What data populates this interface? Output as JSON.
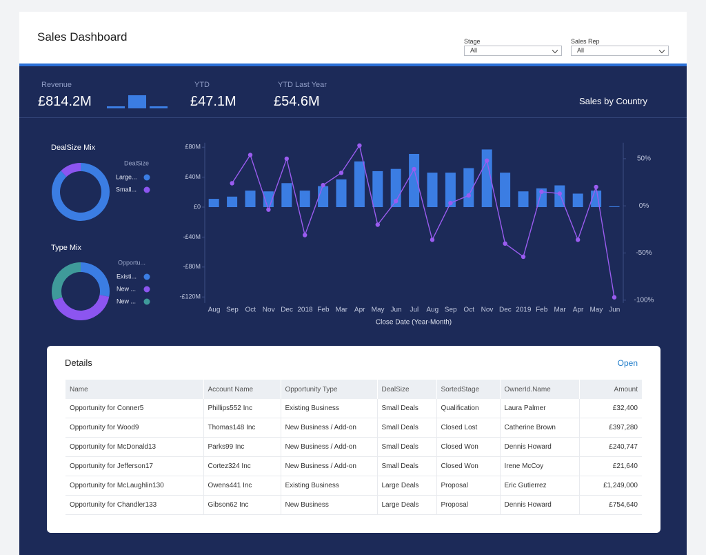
{
  "header": {
    "title": "Sales Dashboard",
    "filters": [
      {
        "label": "Stage",
        "value": "All"
      },
      {
        "label": "Sales Rep",
        "value": "All"
      }
    ]
  },
  "kpis": [
    {
      "label": "Revenue",
      "value": "£814.2M"
    },
    {
      "label": "YTD",
      "value": "£47.1M"
    },
    {
      "label": "YTD Last Year",
      "value": "£54.6M"
    }
  ],
  "sales_by_country": "Sales by Country",
  "chart_data": [
    {
      "type": "donut",
      "title": "DealSize Mix",
      "legend_title": "DealSize",
      "categories": [
        "Large...",
        "Small..."
      ],
      "values": [
        88,
        12
      ],
      "colors": [
        "#3b7de3",
        "#8c55f0"
      ]
    },
    {
      "type": "donut",
      "title": "Type Mix",
      "legend_title": "Opportu...",
      "categories": [
        "Existi...",
        "New ...",
        "New ..."
      ],
      "values": [
        28,
        42,
        30
      ],
      "colors": [
        "#3b7de3",
        "#8c55f0",
        "#3f9a9a"
      ]
    },
    {
      "type": "combo",
      "x_label": "Close Date (Year-Month)",
      "categories": [
        "Aug",
        "Sep",
        "Oct",
        "Nov",
        "Dec",
        "2018",
        "Feb",
        "Mar",
        "Apr",
        "May",
        "Jun",
        "Jul",
        "Aug",
        "Sep",
        "Oct",
        "Nov",
        "Dec",
        "2019",
        "Feb",
        "Mar",
        "Apr",
        "May",
        "Jun"
      ],
      "ylim": [
        -128,
        86
      ],
      "yticks": [
        {
          "value": 80,
          "label": "£80M"
        },
        {
          "value": 40,
          "label": "£40M"
        },
        {
          "value": 0,
          "label": "£0"
        },
        {
          "value": -40,
          "label": "-£40M"
        },
        {
          "value": -80,
          "label": "-£80M"
        },
        {
          "value": -120,
          "label": "-£120M"
        }
      ],
      "y2lim": [
        -103,
        67
      ],
      "y2ticks": [
        {
          "value": 50,
          "label": "50%"
        },
        {
          "value": 0,
          "label": "0%"
        },
        {
          "value": -50,
          "label": "-50%"
        },
        {
          "value": -100,
          "label": "-100%"
        }
      ],
      "series": [
        {
          "type": "bar",
          "color": "#3b7de3",
          "values": [
            11,
            14,
            22,
            21,
            32,
            22,
            28,
            37,
            61,
            48,
            51,
            71,
            46,
            46,
            52,
            77,
            46,
            21,
            25,
            29,
            18,
            22,
            1
          ]
        },
        {
          "type": "line",
          "axis": "y2",
          "color": "#9a5cf0",
          "values": [
            null,
            24,
            54,
            -4,
            50,
            -31,
            22,
            35,
            64,
            -20,
            5,
            39,
            -36,
            3,
            11,
            48,
            -40,
            -54,
            15,
            13,
            -36,
            20,
            -97
          ]
        }
      ]
    }
  ],
  "details": {
    "title": "Details",
    "action": "Open",
    "columns": [
      "Name",
      "Account Name",
      "Opportunity Type",
      "DealSize",
      "SortedStage",
      "OwnerId.Name",
      "Amount"
    ],
    "rows": [
      [
        "Opportunity for Conner5",
        "Phillips552 Inc",
        "Existing Business",
        "Small Deals",
        "Qualification",
        "Laura Palmer",
        "£32,400"
      ],
      [
        "Opportunity for Wood9",
        "Thomas148 Inc",
        "New Business / Add-on",
        "Small Deals",
        "Closed Lost",
        "Catherine Brown",
        "£397,280"
      ],
      [
        "Opportunity for McDonald13",
        "Parks99 Inc",
        "New Business / Add-on",
        "Small Deals",
        "Closed Won",
        "Dennis Howard",
        "£240,747"
      ],
      [
        "Opportunity for Jefferson17",
        "Cortez324 Inc",
        "New Business / Add-on",
        "Small Deals",
        "Closed Won",
        "Irene McCoy",
        "£21,640"
      ],
      [
        "Opportunity for McLaughlin130",
        "Owens441 Inc",
        "Existing Business",
        "Large Deals",
        "Proposal",
        "Eric Gutierrez",
        "£1,249,000"
      ],
      [
        "Opportunity for Chandler133",
        "Gibson62 Inc",
        "New Business",
        "Large Deals",
        "Proposal",
        "Dennis Howard",
        "£754,640"
      ]
    ]
  }
}
